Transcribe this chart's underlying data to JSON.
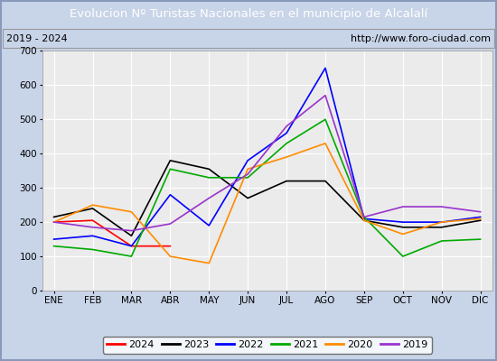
{
  "title": "Evolucion Nº Turistas Nacionales en el municipio de Alcalalí",
  "subtitle_left": "2019 - 2024",
  "subtitle_right": "http://www.foro-ciudad.com",
  "title_bg_color": "#4472c4",
  "title_text_color": "#ffffff",
  "subtitle_bg_color": "#ffffff",
  "plot_bg_color": "#ebebeb",
  "grid_color": "#ffffff",
  "fig_bg_color": "#c8d4e8",
  "months": [
    "ENE",
    "FEB",
    "MAR",
    "ABR",
    "MAY",
    "JUN",
    "JUL",
    "AGO",
    "SEP",
    "OCT",
    "NOV",
    "DIC"
  ],
  "ylim": [
    0,
    700
  ],
  "yticks": [
    0,
    100,
    200,
    300,
    400,
    500,
    600,
    700
  ],
  "series": {
    "2024": {
      "color": "#ff0000",
      "values": [
        200,
        205,
        130,
        130,
        null,
        null,
        null,
        null,
        null,
        null,
        null,
        null
      ]
    },
    "2023": {
      "color": "#000000",
      "values": [
        215,
        240,
        160,
        380,
        355,
        270,
        320,
        320,
        205,
        185,
        185,
        205
      ]
    },
    "2022": {
      "color": "#0000ff",
      "values": [
        150,
        160,
        130,
        280,
        190,
        380,
        460,
        650,
        210,
        200,
        200,
        215
      ]
    },
    "2021": {
      "color": "#00aa00",
      "values": [
        130,
        120,
        100,
        355,
        330,
        330,
        430,
        500,
        215,
        100,
        145,
        150
      ]
    },
    "2020": {
      "color": "#ff8c00",
      "values": [
        200,
        250,
        230,
        100,
        80,
        355,
        390,
        430,
        205,
        165,
        200,
        210
      ]
    },
    "2019": {
      "color": "#9933cc",
      "values": [
        200,
        185,
        175,
        195,
        270,
        340,
        480,
        570,
        215,
        245,
        245,
        230
      ]
    }
  },
  "legend_order": [
    "2024",
    "2023",
    "2022",
    "2021",
    "2020",
    "2019"
  ]
}
